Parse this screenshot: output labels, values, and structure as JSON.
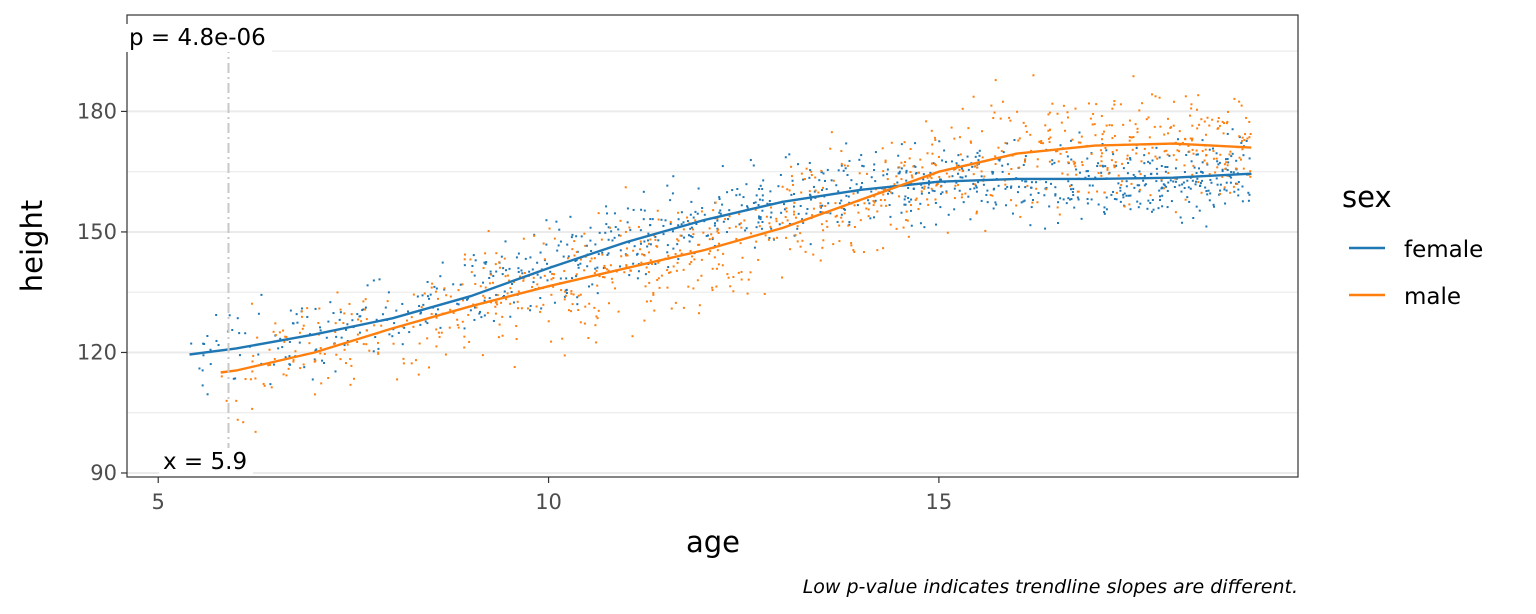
{
  "chart_data": {
    "type": "scatter",
    "xlabel": "age",
    "ylabel": "height",
    "xlim": [
      4.6,
      19.6
    ],
    "ylim": [
      89,
      204
    ],
    "x_ticks": [
      5,
      10,
      15
    ],
    "y_ticks": [
      90,
      120,
      150,
      180
    ],
    "grid": true,
    "legend": {
      "title": "sex",
      "position": "right"
    },
    "series": [
      {
        "name": "female",
        "color": "#1f77b4",
        "trend": [
          [
            5.4,
            119.5
          ],
          [
            6,
            121
          ],
          [
            7,
            124.5
          ],
          [
            8,
            128.5
          ],
          [
            9,
            134
          ],
          [
            10,
            141
          ],
          [
            11,
            147.5
          ],
          [
            12,
            153
          ],
          [
            13,
            157.5
          ],
          [
            14,
            160.5
          ],
          [
            15,
            162.5
          ],
          [
            16,
            163.2
          ],
          [
            17,
            163.2
          ],
          [
            18,
            163.5
          ],
          [
            19,
            164.5
          ]
        ],
        "scatter_x_range": [
          5.4,
          19.0
        ],
        "scatter_spread": 5
      },
      {
        "name": "male",
        "color": "#ff7f0e",
        "trend": [
          [
            5.8,
            115
          ],
          [
            6,
            115.5
          ],
          [
            7,
            120
          ],
          [
            8,
            126
          ],
          [
            9,
            131.5
          ],
          [
            10,
            136.5
          ],
          [
            11,
            141
          ],
          [
            12,
            145.5
          ],
          [
            13,
            151
          ],
          [
            14,
            158
          ],
          [
            15,
            165
          ],
          [
            16,
            169.5
          ],
          [
            17,
            171.5
          ],
          [
            18,
            172
          ],
          [
            19,
            171
          ]
        ],
        "scatter_x_range": [
          5.8,
          19.0
        ],
        "scatter_spread": 7
      }
    ],
    "vline_x": 5.9,
    "annotations": {
      "p_value": "p = 4.8e-06",
      "x_value": "x = 5.9"
    },
    "caption": "Low p-value indicates trendline slopes are different."
  }
}
